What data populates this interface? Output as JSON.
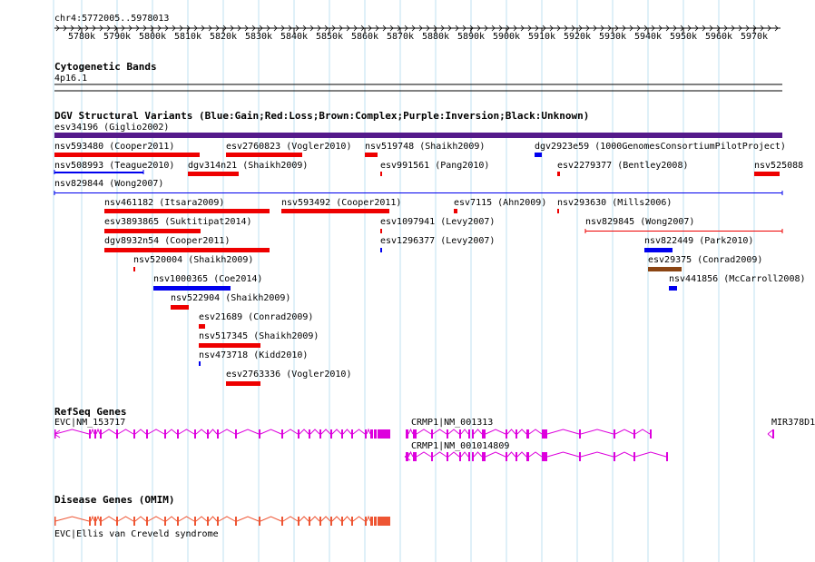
{
  "ruler": {
    "range_label": "chr4:5772005..5978013",
    "ticks": [
      "5780k",
      "5790k",
      "5800k",
      "5810k",
      "5820k",
      "5830k",
      "5840k",
      "5850k",
      "5860k",
      "5870k",
      "5880k",
      "5890k",
      "5900k",
      "5910k",
      "5920k",
      "5930k",
      "5940k",
      "5950k",
      "5960k",
      "5970k"
    ]
  },
  "cytoband": {
    "title": "Cytogenetic Bands",
    "band_label": "4p16.1"
  },
  "dgv": {
    "title": "DGV Structural Variants (Blue:Gain;Red:Loss;Brown:Complex;Purple:Inversion;Black:Unknown)",
    "colors": {
      "gain": "#0000ee",
      "loss": "#ee0000",
      "complex": "#8b4513",
      "inversion": "#551a8b",
      "unknown": "#000000"
    },
    "variants": [
      {
        "label": "esv34196 (Giglio2002)",
        "type": "inversion"
      },
      {
        "label": "nsv593480 (Cooper2011)",
        "type": "loss"
      },
      {
        "label": "esv2760823 (Vogler2010)",
        "type": "loss"
      },
      {
        "label": "nsv519748 (Shaikh2009)",
        "type": "loss"
      },
      {
        "label": "dgv2923e59 (1000GenomesConsortiumPilotProject)",
        "type": "gain"
      },
      {
        "label": "nsv508993 (Teague2010)",
        "type": "gain"
      },
      {
        "label": "dgv314n21 (Shaikh2009)",
        "type": "loss"
      },
      {
        "label": "esv991561 (Pang2010)",
        "type": "loss"
      },
      {
        "label": "esv2279377 (Bentley2008)",
        "type": "loss"
      },
      {
        "label": "nsv525088",
        "type": "loss"
      },
      {
        "label": "nsv829844 (Wong2007)",
        "type": "gain"
      },
      {
        "label": "nsv461182 (Itsara2009)",
        "type": "loss"
      },
      {
        "label": "nsv593492 (Cooper2011)",
        "type": "loss"
      },
      {
        "label": "esv7115 (Ahn2009)",
        "type": "loss"
      },
      {
        "label": "nsv293630 (Mills2006)",
        "type": "loss"
      },
      {
        "label": "esv3893865 (Suktitipat2014)",
        "type": "loss"
      },
      {
        "label": "esv1097941 (Levy2007)",
        "type": "loss"
      },
      {
        "label": "nsv829845 (Wong2007)",
        "type": "loss"
      },
      {
        "label": "dgv8932n54 (Cooper2011)",
        "type": "loss"
      },
      {
        "label": "esv1296377 (Levy2007)",
        "type": "gain"
      },
      {
        "label": "nsv822449 (Park2010)",
        "type": "gain"
      },
      {
        "label": "nsv520004 (Shaikh2009)",
        "type": "loss"
      },
      {
        "label": "esv29375 (Conrad2009)",
        "type": "complex"
      },
      {
        "label": "nsv1000365 (Coe2014)",
        "type": "gain"
      },
      {
        "label": "nsv441856 (McCarroll2008)",
        "type": "gain"
      },
      {
        "label": "nsv522904 (Shaikh2009)",
        "type": "loss"
      },
      {
        "label": "esv21689 (Conrad2009)",
        "type": "loss"
      },
      {
        "label": "nsv517345 (Shaikh2009)",
        "type": "loss"
      },
      {
        "label": "nsv473718 (Kidd2010)",
        "type": "gain"
      },
      {
        "label": "esv2763336 (Vogler2010)",
        "type": "loss"
      }
    ]
  },
  "refseq": {
    "title": "RefSeq Genes",
    "color": "#dd00dd",
    "genes": [
      "EVC|NM_153717",
      "CRMP1|NM_001313",
      "CRMP1|NM_001014809",
      "MIR378D1"
    ]
  },
  "omim": {
    "title": "Disease Genes (OMIM)",
    "color": "#ee5533",
    "genes": [
      "EVC|Ellis van Creveld syndrome"
    ]
  }
}
